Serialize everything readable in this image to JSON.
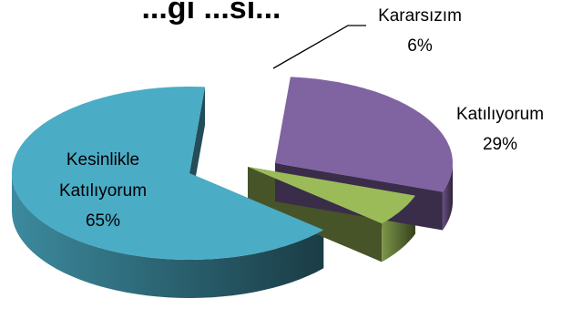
{
  "chart_data": {
    "type": "pie",
    "title": "...gı ...sı...",
    "categories": [
      "Kesinlikle Katılıyorum",
      "Kararsızım",
      "Katılıyorum"
    ],
    "values": [
      65,
      6,
      29
    ],
    "unit": "%",
    "data_labels": [
      {
        "lines": [
          "Kesinlikle",
          "Katılıyorum"
        ],
        "value": "65%"
      },
      {
        "lines": [
          "Kararsızım"
        ],
        "value": "6%"
      },
      {
        "lines": [
          "Katılıyorum"
        ],
        "value": "29%"
      }
    ],
    "style": "3d-exploded",
    "colors": [
      "#4bacc6",
      "#9bbb59",
      "#8064a2"
    ],
    "legend": "none"
  }
}
